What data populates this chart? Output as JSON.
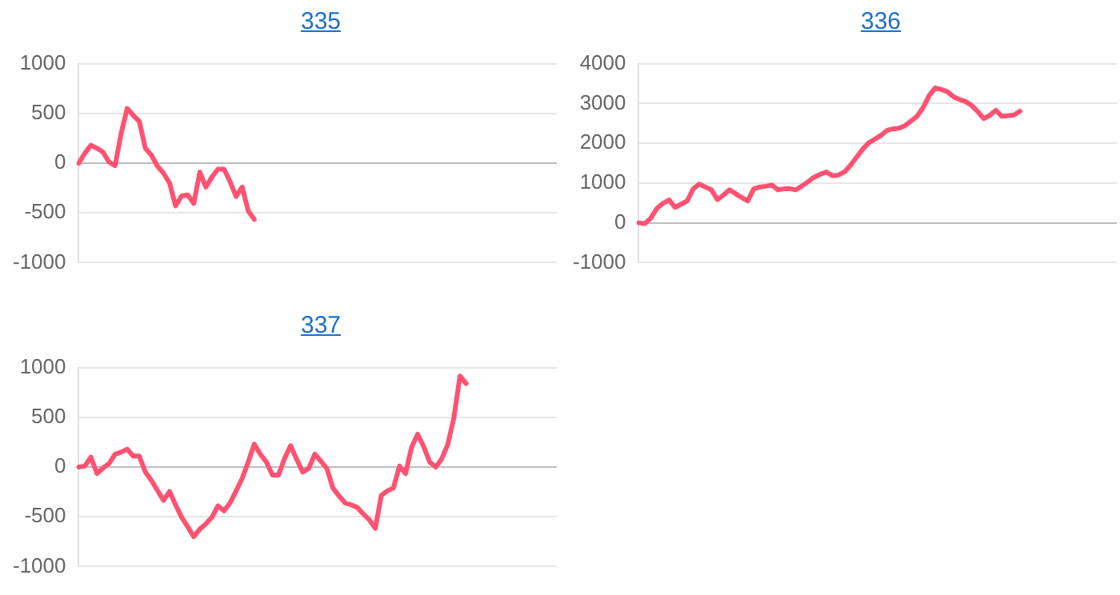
{
  "chart_data": [
    {
      "type": "line",
      "title": "335",
      "categories": [
        null,
        null,
        null,
        null,
        null,
        null,
        null,
        null,
        null,
        null,
        null,
        null,
        null,
        null,
        null,
        null,
        null,
        null,
        null,
        null,
        null,
        null,
        null,
        null,
        null,
        null,
        null,
        null,
        null,
        null,
        null,
        null,
        null,
        null,
        null,
        null,
        null,
        null,
        null,
        null,
        null,
        null,
        null,
        null,
        null,
        null,
        null,
        null,
        null,
        null,
        null,
        null,
        null,
        null,
        null,
        null,
        null,
        null,
        null,
        null,
        null,
        null,
        null,
        null,
        null,
        null,
        null,
        null,
        null,
        null,
        null,
        null,
        null,
        null,
        null,
        null,
        null,
        null,
        null,
        null
      ],
      "series": [
        {
          "color": "#ff5272",
          "values": [
            0,
            100,
            180,
            150,
            110,
            10,
            -25,
            300,
            550,
            480,
            420,
            150,
            80,
            -30,
            -100,
            -200,
            -430,
            -330,
            -320,
            -405,
            -90,
            -240,
            -140,
            -60,
            -60,
            -185,
            -335,
            -240,
            -480,
            -565,
            null,
            null,
            null,
            null,
            null,
            null,
            null,
            null,
            null,
            null,
            null,
            null,
            null,
            null,
            null,
            null,
            null,
            null,
            null,
            null,
            null,
            null,
            null,
            null,
            null,
            null,
            null,
            null,
            null,
            null,
            null,
            null,
            null,
            null,
            null,
            null,
            null,
            null,
            null,
            null,
            null,
            null,
            null,
            null,
            null,
            null,
            null,
            null,
            null,
            null
          ]
        }
      ],
      "ylim": [
        -1000,
        1000
      ],
      "yticks": [
        -1000,
        -500,
        0,
        500,
        1000
      ],
      "grid": "y",
      "tick_labels": "y",
      "legend": false,
      "marker": "none"
    },
    {
      "type": "line",
      "title": "336",
      "categories": [
        null,
        null,
        null,
        null,
        null,
        null,
        null,
        null,
        null,
        null,
        null,
        null,
        null,
        null,
        null,
        null,
        null,
        null,
        null,
        null,
        null,
        null,
        null,
        null,
        null,
        null,
        null,
        null,
        null,
        null,
        null,
        null,
        null,
        null,
        null,
        null,
        null,
        null,
        null,
        null,
        null,
        null,
        null,
        null,
        null,
        null,
        null,
        null,
        null,
        null,
        null,
        null,
        null,
        null,
        null,
        null,
        null,
        null,
        null,
        null,
        null,
        null,
        null,
        null,
        null,
        null,
        null,
        null,
        null,
        null,
        null,
        null,
        null,
        null,
        null,
        null,
        null,
        null,
        null,
        null
      ],
      "series": [
        {
          "color": "#ff5272",
          "values": [
            0,
            -20,
            120,
            365,
            490,
            575,
            390,
            470,
            550,
            855,
            975,
            900,
            830,
            585,
            700,
            830,
            730,
            640,
            550,
            855,
            900,
            920,
            950,
            830,
            855,
            855,
            830,
            930,
            1035,
            1150,
            1220,
            1280,
            1185,
            1200,
            1280,
            1450,
            1650,
            1850,
            2010,
            2100,
            2195,
            2320,
            2360,
            2380,
            2440,
            2560,
            2680,
            2900,
            3200,
            3390,
            3350,
            3295,
            3170,
            3100,
            3050,
            2950,
            2800,
            2620,
            2700,
            2830,
            2680,
            2690,
            2710,
            2805,
            null,
            null,
            null,
            null,
            null,
            null,
            null,
            null,
            null,
            null,
            null,
            null,
            null,
            null,
            null,
            null
          ]
        }
      ],
      "ylim": [
        -1000,
        4000
      ],
      "yticks": [
        -1000,
        0,
        1000,
        2000,
        3000,
        4000
      ],
      "grid": "y",
      "tick_labels": "y",
      "legend": false,
      "marker": "none"
    },
    {
      "type": "line",
      "title": "337",
      "categories": [
        null,
        null,
        null,
        null,
        null,
        null,
        null,
        null,
        null,
        null,
        null,
        null,
        null,
        null,
        null,
        null,
        null,
        null,
        null,
        null,
        null,
        null,
        null,
        null,
        null,
        null,
        null,
        null,
        null,
        null,
        null,
        null,
        null,
        null,
        null,
        null,
        null,
        null,
        null,
        null,
        null,
        null,
        null,
        null,
        null,
        null,
        null,
        null,
        null,
        null,
        null,
        null,
        null,
        null,
        null,
        null,
        null,
        null,
        null,
        null,
        null,
        null,
        null,
        null,
        null,
        null,
        null,
        null,
        null,
        null,
        null,
        null,
        null,
        null,
        null,
        null,
        null,
        null,
        null,
        null
      ],
      "series": [
        {
          "color": "#ff5272",
          "values": [
            0,
            10,
            100,
            -65,
            -10,
            35,
            130,
            150,
            180,
            110,
            110,
            -50,
            -135,
            -235,
            -335,
            -245,
            -380,
            -505,
            -600,
            -700,
            -625,
            -570,
            -505,
            -390,
            -440,
            -360,
            -240,
            -115,
            50,
            230,
            130,
            50,
            -80,
            -80,
            85,
            215,
            80,
            -50,
            -15,
            130,
            60,
            -15,
            -210,
            -290,
            -360,
            -380,
            -405,
            -470,
            -530,
            -615,
            -285,
            -240,
            -210,
            10,
            -65,
            200,
            330,
            205,
            50,
            0,
            85,
            230,
            500,
            915,
            840,
            null,
            null,
            null,
            null,
            null,
            null,
            null,
            null,
            null,
            null,
            null,
            null,
            null,
            null,
            null
          ]
        }
      ],
      "ylim": [
        -1000,
        1000
      ],
      "yticks": [
        -1000,
        -500,
        0,
        500,
        1000
      ],
      "grid": "y",
      "tick_labels": "y",
      "legend": false,
      "marker": "none"
    }
  ]
}
